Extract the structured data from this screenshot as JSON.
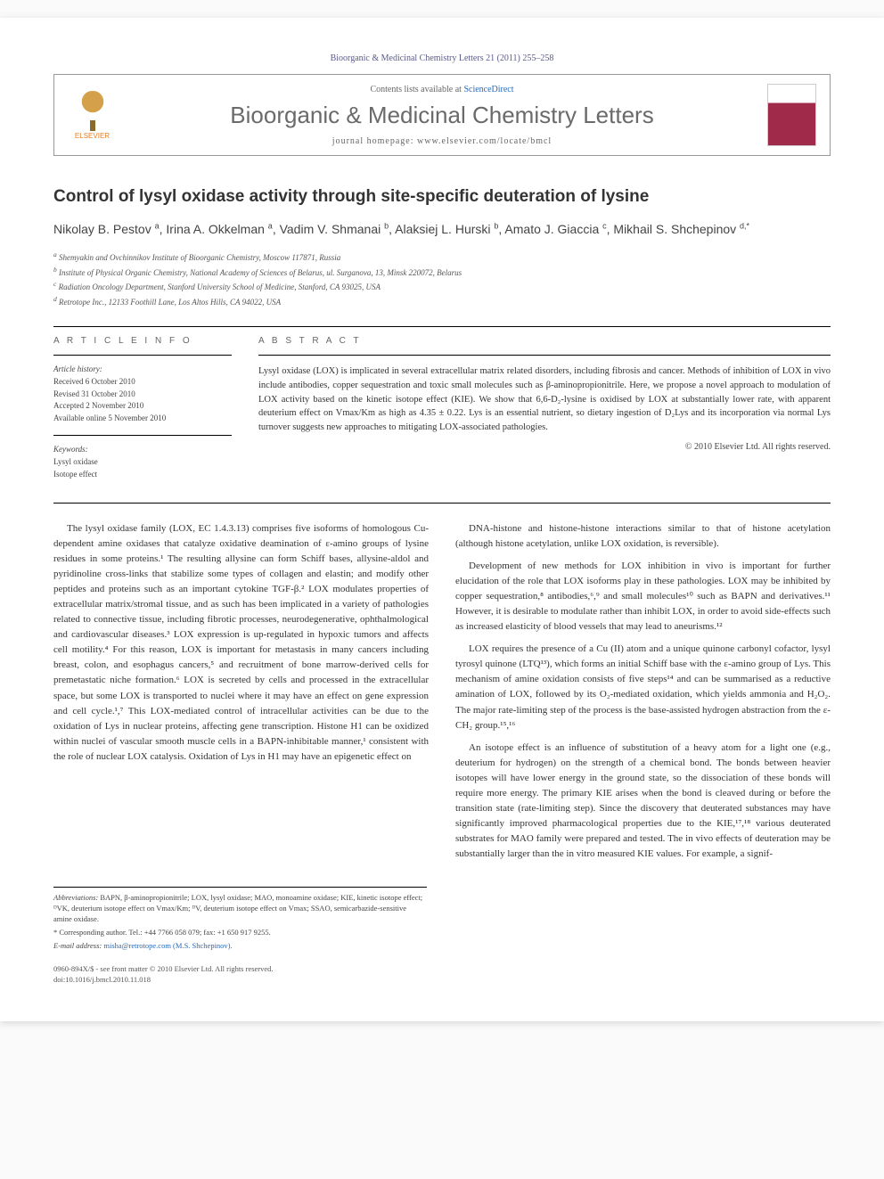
{
  "journal_ref": "Bioorganic & Medicinal Chemistry Letters 21 (2011) 255–258",
  "header": {
    "publisher": "ELSEVIER",
    "contents_prefix": "Contents lists available at ",
    "contents_link": "ScienceDirect",
    "journal_title": "Bioorganic & Medicinal Chemistry Letters",
    "homepage_prefix": "journal homepage: ",
    "homepage_url": "www.elsevier.com/locate/bmcl"
  },
  "article": {
    "title": "Control of lysyl oxidase activity through site-specific deuteration of lysine",
    "authors_html": "Nikolay B. Pestov <sup>a</sup>, Irina A. Okkelman <sup>a</sup>, Vadim V. Shmanai <sup>b</sup>, Alaksiej L. Hurski <sup>b</sup>, Amato J. Giaccia <sup>c</sup>, Mikhail S. Shchepinov <sup>d,*</sup>",
    "affiliations": [
      "a Shemyakin and Ovchinnikov Institute of Bioorganic Chemistry, Moscow 117871, Russia",
      "b Institute of Physical Organic Chemistry, National Academy of Sciences of Belarus, ul. Surganova, 13, Minsk 220072, Belarus",
      "c Radiation Oncology Department, Stanford University School of Medicine, Stanford, CA 93025, USA",
      "d Retrotope Inc., 12133 Foothill Lane, Los Altos Hills, CA 94022, USA"
    ]
  },
  "info": {
    "heading": "A R T I C L E   I N F O",
    "history_label": "Article history:",
    "history": [
      "Received 6 October 2010",
      "Revised 31 October 2010",
      "Accepted 2 November 2010",
      "Available online 5 November 2010"
    ],
    "keywords_label": "Keywords:",
    "keywords": [
      "Lysyl oxidase",
      "Isotope effect"
    ]
  },
  "abstract": {
    "heading": "A B S T R A C T",
    "text": "Lysyl oxidase (LOX) is implicated in several extracellular matrix related disorders, including fibrosis and cancer. Methods of inhibition of LOX in vivo include antibodies, copper sequestration and toxic small molecules such as β-aminopropionitrile. Here, we propose a novel approach to modulation of LOX activity based on the kinetic isotope effect (KIE). We show that 6,6-D₂-lysine is oxidised by LOX at substantially lower rate, with apparent deuterium effect on Vmax/Km as high as 4.35 ± 0.22. Lys is an essential nutrient, so dietary ingestion of D₂Lys and its incorporation via normal Lys turnover suggests new approaches to mitigating LOX-associated pathologies.",
    "copyright": "© 2010 Elsevier Ltd. All rights reserved."
  },
  "body": {
    "col1": [
      "The lysyl oxidase family (LOX, EC 1.4.3.13) comprises five isoforms of homologous Cu-dependent amine oxidases that catalyze oxidative deamination of ε-amino groups of lysine residues in some proteins.¹ The resulting allysine can form Schiff bases, allysine-aldol and pyridinoline cross-links that stabilize some types of collagen and elastin; and modify other peptides and proteins such as an important cytokine TGF-β.² LOX modulates properties of extracellular matrix/stromal tissue, and as such has been implicated in a variety of pathologies related to connective tissue, including fibrotic processes, neurodegenerative, ophthalmological and cardiovascular diseases.³ LOX expression is up-regulated in hypoxic tumors and affects cell motility.⁴ For this reason, LOX is important for metastasis in many cancers including breast, colon, and esophagus cancers,⁵ and recruitment of bone marrow-derived cells for premetastatic niche formation.⁶ LOX is secreted by cells and processed in the extracellular space, but some LOX is transported to nuclei where it may have an effect on gene expression and cell cycle.¹,⁷ This LOX-mediated control of intracellular activities can be due to the oxidation of Lys in nuclear proteins, affecting gene transcription. Histone H1 can be oxidized within nuclei of vascular smooth muscle cells in a BAPN-inhibitable manner,¹ consistent with the role of nuclear LOX catalysis. Oxidation of Lys in H1 may have an epigenetic effect on"
    ],
    "col2": [
      "DNA-histone and histone-histone interactions similar to that of histone acetylation (although histone acetylation, unlike LOX oxidation, is reversible).",
      "Development of new methods for LOX inhibition in vivo is important for further elucidation of the role that LOX isoforms play in these pathologies. LOX may be inhibited by copper sequestration,⁸ antibodies,⁶,⁹ and small molecules¹⁰ such as BAPN and derivatives.¹¹ However, it is desirable to modulate rather than inhibit LOX, in order to avoid side-effects such as increased elasticity of blood vessels that may lead to aneurisms.¹²",
      "LOX requires the presence of a Cu (II) atom and a unique quinone carbonyl cofactor, lysyl tyrosyl quinone (LTQ¹³), which forms an initial Schiff base with the ε-amino group of Lys. This mechanism of amine oxidation consists of five steps¹⁴ and can be summarised as a reductive amination of LOX, followed by its O₂-mediated oxidation, which yields ammonia and H₂O₂. The major rate-limiting step of the process is the base-assisted hydrogen abstraction from the ε-CH₂ group.¹⁵,¹⁶",
      "An isotope effect is an influence of substitution of a heavy atom for a light one (e.g., deuterium for hydrogen) on the strength of a chemical bond. The bonds between heavier isotopes will have lower energy in the ground state, so the dissociation of these bonds will require more energy. The primary KIE arises when the bond is cleaved during or before the transition state (rate-limiting step). Since the discovery that deuterated substances may have significantly improved pharmacological properties due to the KIE,¹⁷,¹⁸ various deuterated substrates for MAO family were prepared and tested. The in vivo effects of deuteration may be substantially larger than the in vitro measured KIE values. For example, a signif-"
    ]
  },
  "footnotes": {
    "abbreviations_label": "Abbreviations:",
    "abbreviations": "BAPN, β-aminopropionitrile; LOX, lysyl oxidase; MAO, monoamine oxidase; KIE, kinetic isotope effect; ᴰVK, deuterium isotope effect on Vmax/Km; ᴰV, deuterium isotope effect on Vmax; SSAO, semicarbazide-sensitive amine oxidase.",
    "corresponding_label": "* Corresponding author.",
    "corresponding": "Tel.: +44 7766 058 079; fax: +1 650 917 9255.",
    "email_label": "E-mail address:",
    "email": "misha@retrotope.com (M.S. Shchepinov)."
  },
  "footer": {
    "line1": "0960-894X/$ - see front matter © 2010 Elsevier Ltd. All rights reserved.",
    "line2": "doi:10.1016/j.bmcl.2010.11.018"
  }
}
